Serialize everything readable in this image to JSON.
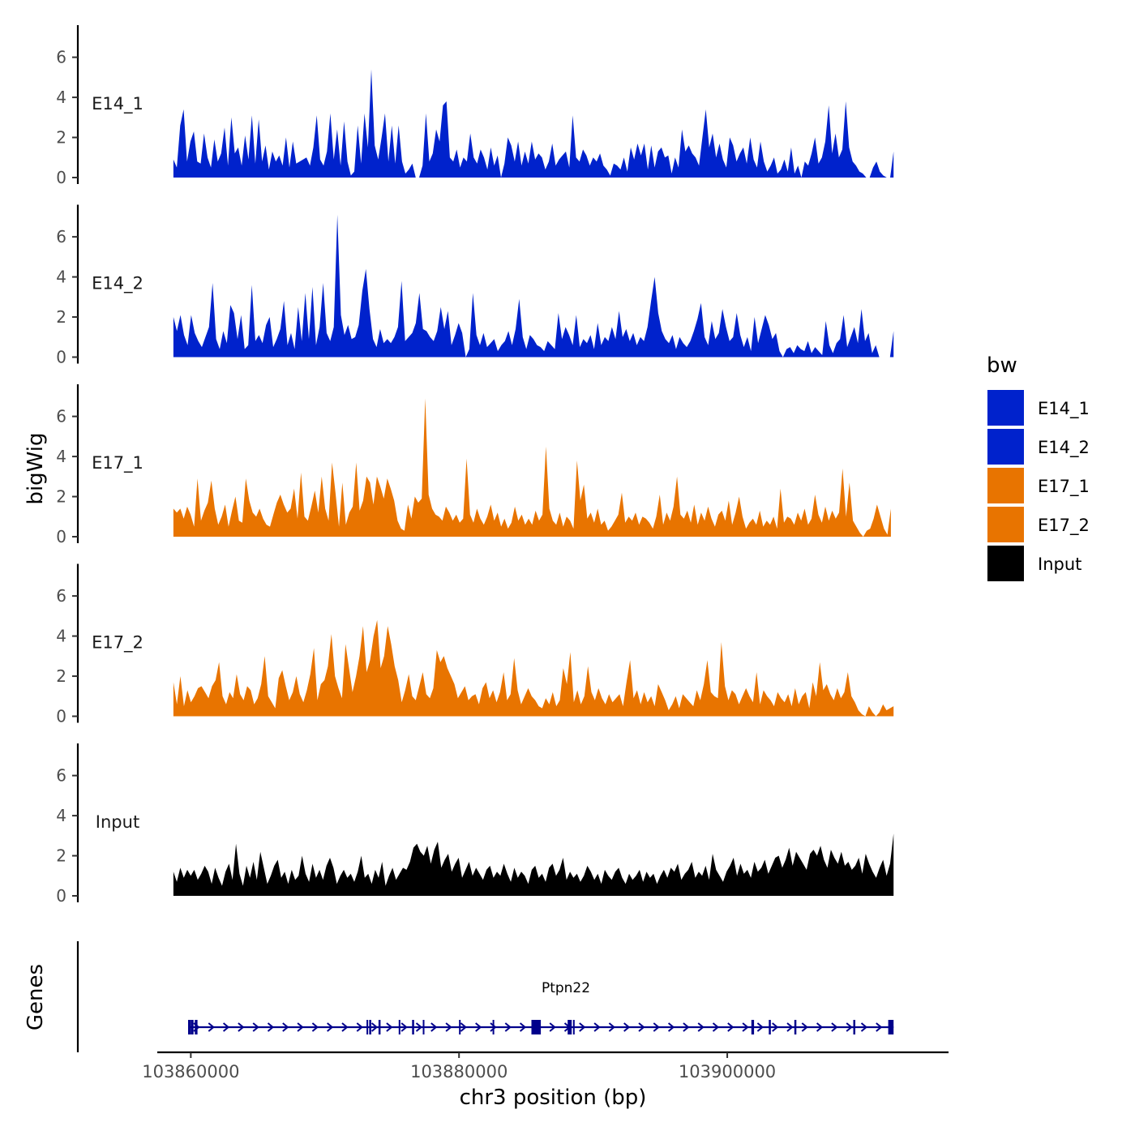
{
  "chart_data": {
    "type": "area",
    "ylabel": "bigWig",
    "xlabel": "chr3 position (bp)",
    "ylim": [
      0,
      7.4
    ],
    "yticks": [
      0,
      2,
      4,
      6
    ],
    "ytick_labels": [
      "0",
      "2",
      "4",
      "6"
    ],
    "xlim": [
      103857500,
      103916500
    ],
    "xticks": [
      103860000,
      103880000,
      103900000
    ],
    "xtick_labels": [
      "103860000",
      "103880000",
      "103900000"
    ],
    "legend": {
      "title": "bw",
      "placement": "right",
      "entries": [
        {
          "label": "E14_1",
          "color": "#0022CC"
        },
        {
          "label": "E14_2",
          "color": "#0022CC"
        },
        {
          "label": "E17_1",
          "color": "#E87400"
        },
        {
          "label": "E17_2",
          "color": "#E87400"
        },
        {
          "label": "Input",
          "color": "#000000"
        }
      ]
    },
    "series": [
      {
        "name": "E14_1",
        "color": "#0022CC",
        "x_start": 103858700,
        "x_end": 103912400,
        "step": 600,
        "values": [
          0.9,
          0.5,
          2.6,
          3.4,
          0.8,
          1.8,
          2.3,
          0.8,
          0.7,
          2.2,
          1.0,
          0.5,
          1.9,
          0.8,
          1.2,
          2.5,
          0.6,
          3.0,
          1.2,
          1.5,
          0.6,
          2.1,
          0.9,
          3.1,
          0.7,
          2.9,
          0.8,
          1.6,
          0.4,
          1.3,
          0.8,
          1.1,
          0.6,
          2.0,
          0.5,
          1.8,
          0.7,
          0.8,
          0.9,
          1.0,
          0.6,
          1.5,
          3.1,
          0.9,
          0.6,
          1.3,
          3.2,
          0.9,
          2.4,
          0.6,
          2.8,
          0.8,
          0.1,
          0.3,
          2.6,
          0.7,
          3.2,
          1.5,
          5.4,
          1.6,
          0.9,
          2.0,
          3.2,
          0.8,
          2.6,
          0.7,
          2.6,
          0.8,
          0.2,
          0.4,
          0.7,
          0.0,
          0.0,
          0.6,
          3.2,
          0.8,
          1.2,
          2.4,
          1.8,
          3.6,
          3.8,
          1.0,
          0.8,
          1.4,
          0.5,
          1.0,
          0.8,
          2.2,
          1.0,
          0.7,
          1.4,
          1.0,
          0.4,
          1.5,
          0.6,
          1.1,
          0.0,
          0.7,
          2.0,
          1.6,
          0.8,
          1.8,
          0.6,
          1.3,
          0.7,
          1.8,
          0.9,
          1.2,
          1.0,
          0.4,
          0.8,
          1.7,
          0.6,
          0.9,
          1.1,
          1.3,
          0.5,
          3.1,
          1.0,
          0.8,
          1.4,
          1.1,
          0.6,
          1.0,
          0.8,
          1.2,
          0.6,
          0.4,
          0.1,
          0.7,
          0.6,
          0.4,
          1.0,
          0.3,
          1.5,
          0.9,
          1.7,
          1.1,
          1.7,
          0.4,
          1.6,
          0.5,
          1.3,
          1.5,
          1.0,
          1.1,
          0.2,
          1.0,
          0.5,
          2.4,
          1.3,
          1.6,
          1.2,
          1.0,
          0.6,
          2.0,
          3.4,
          1.5,
          2.2,
          1.0,
          1.7,
          0.9,
          0.5,
          2.0,
          1.6,
          0.8,
          1.2,
          1.5,
          0.7,
          2.0,
          0.9,
          0.5,
          1.8,
          0.8,
          0.3,
          0.6,
          1.0,
          0.2,
          0.4,
          0.9,
          0.3,
          1.5,
          0.2,
          0.6,
          0.0,
          0.8,
          0.6,
          1.2,
          2.0,
          0.7,
          1.0,
          1.8,
          3.6,
          1.2,
          2.2,
          1.0,
          1.4,
          3.8,
          1.5,
          0.8,
          0.6,
          0.3,
          0.2,
          0.0,
          0.0,
          0.5,
          0.8,
          0.3,
          0.1,
          0.0,
          0.0,
          1.3
        ]
      },
      {
        "name": "E14_2",
        "color": "#0022CC",
        "x_start": 103858700,
        "x_end": 103912400,
        "step": 600,
        "values": [
          2.0,
          1.3,
          2.1,
          1.1,
          0.6,
          2.1,
          1.2,
          0.8,
          0.5,
          1.0,
          1.5,
          3.7,
          0.9,
          0.4,
          1.3,
          0.7,
          2.6,
          2.2,
          0.9,
          2.1,
          0.4,
          0.6,
          3.6,
          0.8,
          1.1,
          0.7,
          1.6,
          2.0,
          0.5,
          0.9,
          1.4,
          2.8,
          0.6,
          1.2,
          0.4,
          2.5,
          0.8,
          3.2,
          0.9,
          3.5,
          0.6,
          1.5,
          3.7,
          1.2,
          0.8,
          1.5,
          7.1,
          2.1,
          1.1,
          1.6,
          0.9,
          1.0,
          1.6,
          3.3,
          4.4,
          2.4,
          0.9,
          0.5,
          1.4,
          0.7,
          0.9,
          0.7,
          1.0,
          1.5,
          3.8,
          0.8,
          1.0,
          1.2,
          1.7,
          3.2,
          1.4,
          1.3,
          1.0,
          0.8,
          1.3,
          2.5,
          1.4,
          2.3,
          0.6,
          1.1,
          1.7,
          1.2,
          0.0,
          0.4,
          3.2,
          1.1,
          0.6,
          1.2,
          0.5,
          0.7,
          0.9,
          0.3,
          0.6,
          0.8,
          1.3,
          0.6,
          1.4,
          2.9,
          1.0,
          0.4,
          1.1,
          0.9,
          0.6,
          0.5,
          0.3,
          0.8,
          0.6,
          0.4,
          2.2,
          0.9,
          1.5,
          1.1,
          0.6,
          2.1,
          0.5,
          0.9,
          0.7,
          1.1,
          0.4,
          1.7,
          0.6,
          1.0,
          0.8,
          1.5,
          0.9,
          2.3,
          1.0,
          1.4,
          0.8,
          1.2,
          0.6,
          1.0,
          0.8,
          1.5,
          2.8,
          4.0,
          2.2,
          1.3,
          0.9,
          0.7,
          1.1,
          0.4,
          1.0,
          0.7,
          0.5,
          0.8,
          1.3,
          1.9,
          2.7,
          1.0,
          0.6,
          1.8,
          0.9,
          1.2,
          2.4,
          1.5,
          0.8,
          1.0,
          2.2,
          1.1,
          0.5,
          1.0,
          0.3,
          2.0,
          0.7,
          1.4,
          2.1,
          1.6,
          0.9,
          1.2,
          0.3,
          0.0,
          0.4,
          0.5,
          0.2,
          0.6,
          0.4,
          0.3,
          0.8,
          0.2,
          0.5,
          0.3,
          0.1,
          1.8,
          0.6,
          0.2,
          0.7,
          0.9,
          2.1,
          0.5,
          1.0,
          1.5,
          0.7,
          2.4,
          0.8,
          1.2,
          0.2,
          0.6,
          0.0,
          0.0,
          0.0,
          0.0,
          1.3
        ]
      },
      {
        "name": "E17_1",
        "color": "#E87400",
        "x_start": 103858700,
        "x_end": 103912200,
        "step": 600,
        "values": [
          1.4,
          1.2,
          1.4,
          0.9,
          1.5,
          1.1,
          0.5,
          2.9,
          0.8,
          1.3,
          1.7,
          2.8,
          1.4,
          0.6,
          1.0,
          1.6,
          0.5,
          1.3,
          2.0,
          0.8,
          0.7,
          2.9,
          1.8,
          1.2,
          1.0,
          1.4,
          0.9,
          0.6,
          0.5,
          1.1,
          1.7,
          2.1,
          1.6,
          1.2,
          1.4,
          2.4,
          0.9,
          3.2,
          1.0,
          0.8,
          1.5,
          2.3,
          1.2,
          3.0,
          1.4,
          0.8,
          3.7,
          2.2,
          0.5,
          2.7,
          0.6,
          1.2,
          1.5,
          3.7,
          1.3,
          1.8,
          3.0,
          2.7,
          1.6,
          3.0,
          2.5,
          1.9,
          2.9,
          2.4,
          1.8,
          0.8,
          0.4,
          0.3,
          1.6,
          0.9,
          2.0,
          1.7,
          1.9,
          6.9,
          2.1,
          1.4,
          1.1,
          1.0,
          0.8,
          1.5,
          1.2,
          0.8,
          1.1,
          0.7,
          0.9,
          3.9,
          1.1,
          0.7,
          1.4,
          0.9,
          0.6,
          1.0,
          1.6,
          0.8,
          1.2,
          0.5,
          0.9,
          0.4,
          0.7,
          1.5,
          0.8,
          1.1,
          0.6,
          0.9,
          0.6,
          1.3,
          0.8,
          1.1,
          4.5,
          1.4,
          0.8,
          0.6,
          1.2,
          0.5,
          1.0,
          0.8,
          0.4,
          3.8,
          1.8,
          2.6,
          0.9,
          1.2,
          0.7,
          1.4,
          0.6,
          0.8,
          0.3,
          0.5,
          0.8,
          1.1,
          2.2,
          0.7,
          1.0,
          0.8,
          1.2,
          0.6,
          1.0,
          0.9,
          0.7,
          0.4,
          1.0,
          2.1,
          0.6,
          1.2,
          0.8,
          1.5,
          3.0,
          1.1,
          0.9,
          1.3,
          0.7,
          1.6,
          0.6,
          1.2,
          0.8,
          1.5,
          0.9,
          0.5,
          1.1,
          1.3,
          0.8,
          1.8,
          0.6,
          1.2,
          2.0,
          1.0,
          0.4,
          0.7,
          0.9,
          0.6,
          1.3,
          0.5,
          0.8,
          0.6,
          1.0,
          0.4,
          2.4,
          0.7,
          1.0,
          0.9,
          0.6,
          1.2,
          0.8,
          1.4,
          0.6,
          0.9,
          2.1,
          1.1,
          0.7,
          1.5,
          0.8,
          1.3,
          0.9,
          1.2,
          3.4,
          1.0,
          2.7,
          0.8,
          0.5,
          0.2,
          0.0,
          0.3,
          0.4,
          0.9,
          1.6,
          1.0,
          0.4,
          0.1,
          1.4
        ]
      },
      {
        "name": "E17_2",
        "color": "#E87400",
        "x_start": 103858700,
        "x_end": 103912400,
        "step": 600,
        "values": [
          1.7,
          0.6,
          2.0,
          0.5,
          1.3,
          0.7,
          1.0,
          1.4,
          1.5,
          1.2,
          0.9,
          1.5,
          1.8,
          2.7,
          1.0,
          0.6,
          1.2,
          0.9,
          2.1,
          1.1,
          0.8,
          1.5,
          1.3,
          0.6,
          0.9,
          1.6,
          3.0,
          1.0,
          0.7,
          0.4,
          1.9,
          2.3,
          1.5,
          0.8,
          1.2,
          2.0,
          1.1,
          0.7,
          1.3,
          2.1,
          3.4,
          0.8,
          1.6,
          1.8,
          2.5,
          4.1,
          2.0,
          1.4,
          0.9,
          3.6,
          2.4,
          1.2,
          2.0,
          3.0,
          4.5,
          2.2,
          2.8,
          4.0,
          4.8,
          2.4,
          3.0,
          4.5,
          3.6,
          2.5,
          1.8,
          0.7,
          1.3,
          2.1,
          1.0,
          0.8,
          1.5,
          2.2,
          1.1,
          0.9,
          1.4,
          3.3,
          2.7,
          3.0,
          2.4,
          2.0,
          1.6,
          0.9,
          1.2,
          1.5,
          0.8,
          1.0,
          1.1,
          0.6,
          1.4,
          1.7,
          0.9,
          1.3,
          0.7,
          1.2,
          2.2,
          0.8,
          1.1,
          2.9,
          1.3,
          0.6,
          1.0,
          1.4,
          1.0,
          0.8,
          0.5,
          0.4,
          0.9,
          0.6,
          1.2,
          0.5,
          0.8,
          2.4,
          1.6,
          3.2,
          0.7,
          1.3,
          0.6,
          1.0,
          2.5,
          1.2,
          0.8,
          1.4,
          0.9,
          0.6,
          1.1,
          0.7,
          0.9,
          1.1,
          0.5,
          1.7,
          2.8,
          0.9,
          1.3,
          0.6,
          1.2,
          0.7,
          1.0,
          0.5,
          1.6,
          1.2,
          0.8,
          0.3,
          0.6,
          1.0,
          0.4,
          1.1,
          0.9,
          0.7,
          0.5,
          1.3,
          0.8,
          1.6,
          2.8,
          1.2,
          1.0,
          0.9,
          3.7,
          1.5,
          0.8,
          1.3,
          1.1,
          0.6,
          1.0,
          1.4,
          1.0,
          0.7,
          2.2,
          0.6,
          1.3,
          1.0,
          0.8,
          0.5,
          1.2,
          0.9,
          0.7,
          1.1,
          0.5,
          1.4,
          0.6,
          1.0,
          1.2,
          0.4,
          1.7,
          1.0,
          2.7,
          1.3,
          1.6,
          1.1,
          0.8,
          1.4,
          0.9,
          1.2,
          2.2,
          1.0,
          0.7,
          0.3,
          0.1,
          0.0,
          0.5,
          0.2,
          0.0,
          0.2,
          0.6,
          0.3,
          0.4,
          0.5
        ]
      },
      {
        "name": "Input",
        "color": "#000000",
        "x_start": 103858700,
        "x_end": 103912400,
        "step": 600,
        "values": [
          1.2,
          0.7,
          1.4,
          0.9,
          1.3,
          1.0,
          1.3,
          0.8,
          1.1,
          1.5,
          1.2,
          0.6,
          1.4,
          0.9,
          0.5,
          1.2,
          1.6,
          0.8,
          2.6,
          1.1,
          0.5,
          1.5,
          0.9,
          1.7,
          0.8,
          2.2,
          1.4,
          0.6,
          1.0,
          1.5,
          1.8,
          0.9,
          1.2,
          0.6,
          1.3,
          0.8,
          1.0,
          2.0,
          1.1,
          0.7,
          1.6,
          0.9,
          1.3,
          0.8,
          1.5,
          1.9,
          1.4,
          0.6,
          1.0,
          1.3,
          0.9,
          1.1,
          0.7,
          1.2,
          2.0,
          0.9,
          1.1,
          0.6,
          1.3,
          0.9,
          1.7,
          0.5,
          1.0,
          1.4,
          0.8,
          1.1,
          1.4,
          1.3,
          1.7,
          2.4,
          2.6,
          2.2,
          2.0,
          2.5,
          1.6,
          2.3,
          2.7,
          1.4,
          1.8,
          2.1,
          1.2,
          1.6,
          1.9,
          0.9,
          1.3,
          1.7,
          1.0,
          1.4,
          1.1,
          0.8,
          1.3,
          1.5,
          0.9,
          1.2,
          1.0,
          1.6,
          1.1,
          0.7,
          1.4,
          0.9,
          1.2,
          1.0,
          0.6,
          1.3,
          1.5,
          0.9,
          1.1,
          0.7,
          1.4,
          1.6,
          1.0,
          1.3,
          1.9,
          0.8,
          1.2,
          0.9,
          1.1,
          0.7,
          1.0,
          1.5,
          1.2,
          0.8,
          1.1,
          0.6,
          1.3,
          1.0,
          0.8,
          1.2,
          1.4,
          0.9,
          0.6,
          1.1,
          0.8,
          1.0,
          1.3,
          0.7,
          1.2,
          0.9,
          1.1,
          0.6,
          1.0,
          1.3,
          0.9,
          1.4,
          1.2,
          1.6,
          0.8,
          1.1,
          1.3,
          1.7,
          0.9,
          1.2,
          1.0,
          1.5,
          0.8,
          2.1,
          1.3,
          1.0,
          0.7,
          1.2,
          1.5,
          1.9,
          1.0,
          1.6,
          1.1,
          1.3,
          0.9,
          1.7,
          1.2,
          1.4,
          1.8,
          1.1,
          1.5,
          1.9,
          2.0,
          1.4,
          1.8,
          2.4,
          1.5,
          2.2,
          1.9,
          1.6,
          1.3,
          2.1,
          2.3,
          2.0,
          2.5,
          1.8,
          1.4,
          2.3,
          1.9,
          1.6,
          2.2,
          1.5,
          1.7,
          1.3,
          1.5,
          1.9,
          1.1,
          2.1,
          1.6,
          1.2,
          0.9,
          1.4,
          1.8,
          1.0,
          1.6,
          3.1
        ]
      }
    ],
    "genes_track": {
      "label": "Genes",
      "gene_name": "Ptpn22",
      "color": "#00008B",
      "start": 103859800,
      "end": 103912400,
      "strand": "+",
      "exons": [
        [
          103859800,
          103860000
        ],
        [
          103860000,
          103860200
        ],
        [
          103860300,
          103860500
        ],
        [
          103873100,
          103873200
        ],
        [
          103873300,
          103873450
        ],
        [
          103874000,
          103874150
        ],
        [
          103875500,
          103875600
        ],
        [
          103876500,
          103876650
        ],
        [
          103877300,
          103877400
        ],
        [
          103880000,
          103880100
        ],
        [
          103882500,
          103882600
        ],
        [
          103885400,
          103886100
        ],
        [
          103888100,
          103888400
        ],
        [
          103888500,
          103888600
        ],
        [
          103901800,
          103902000
        ],
        [
          103903100,
          103903250
        ],
        [
          103905000,
          103905150
        ],
        [
          103909400,
          103909550
        ],
        [
          103912000,
          103912400
        ]
      ]
    }
  }
}
